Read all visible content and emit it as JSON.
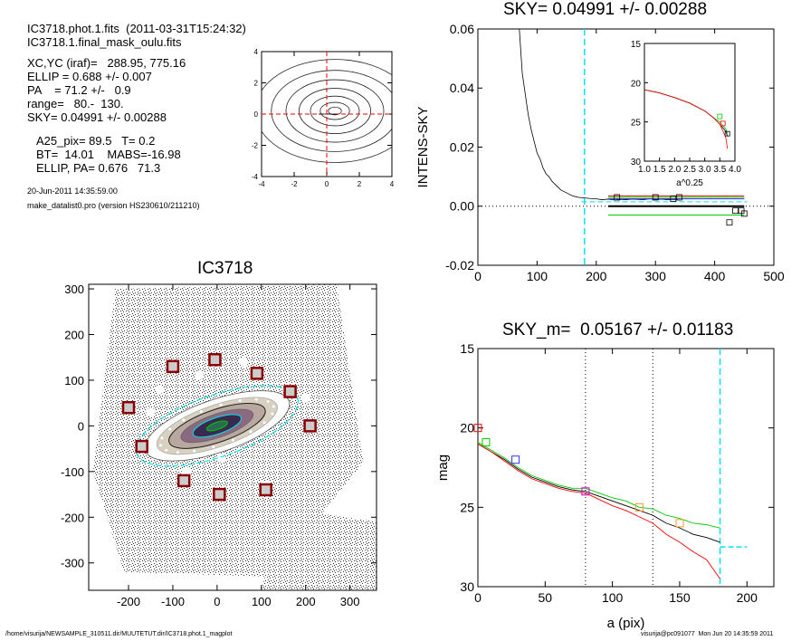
{
  "header": {
    "file_line": "IC3718.phot.1.fits  (2011-03-31T15:24:32)",
    "mask_line": "IC3718.1.final_mask_oulu.fits",
    "xcyc": "XC,YC (iraf)=   288.95, 775.16",
    "ellip": "ELLIP = 0.688 +/- 0.007",
    "pa": "PA    = 71.2 +/-   0.9",
    "range": "range=   80.-  130.",
    "sky": "SKY= 0.04991 +/- 0.00288",
    "a25": "A25_pix= 89.5   T= 0.2",
    "bt": "BT=  14.01    MABS=-16.98",
    "ellip_pa": "ELLIP, PA= 0.676   71.3",
    "date": "20-Jun-2011 14:35:59.00",
    "program": "make_datalist0.pro (version HS230610/211210)"
  },
  "footer": {
    "path": "/home/visurija/NEWSAMPLE_310511.dir/MUUTETUT.dir/IC3718.phot.1_magplot",
    "user": "visurija@pc091077  Mon Jun 20 14:35:59 2011"
  },
  "colors": {
    "cyan": "#00e5ee",
    "red": "#ff0000",
    "green": "#00cc00",
    "blue": "#3030ff",
    "magenta": "#cc00cc",
    "orange": "#ff9933",
    "dkred": "#8b0000"
  },
  "chart_data": [
    {
      "id": "contour",
      "type": "line",
      "xticks": [
        "-4",
        "-2",
        "0",
        "2",
        "4"
      ],
      "yticks": [
        "4",
        "2",
        "0",
        "-2",
        "-4"
      ],
      "xlim": [
        -4,
        4
      ],
      "ylim": [
        -4,
        4
      ]
    },
    {
      "id": "sky",
      "type": "line",
      "title": "SKY= 0.04991 +/- 0.00288",
      "ylabel": "INTENS-SKY",
      "xlim": [
        0,
        500
      ],
      "ylim": [
        -0.02,
        0.06
      ],
      "xticks": [
        "0",
        "100",
        "200",
        "300",
        "400",
        "500"
      ],
      "yticks": [
        "0.06",
        "0.04",
        "0.02",
        "0.00",
        "-0.02"
      ],
      "profile_x": [
        70,
        75,
        80,
        85,
        90,
        95,
        100,
        105,
        110,
        115,
        120,
        125,
        130,
        135,
        140,
        145,
        150,
        160,
        170,
        180,
        190,
        200,
        210,
        220,
        230,
        240,
        250,
        260,
        270,
        280,
        290,
        300,
        310,
        320,
        330,
        340
      ],
      "profile_y": [
        0.06,
        0.045,
        0.038,
        0.031,
        0.026,
        0.022,
        0.018,
        0.016,
        0.013,
        0.011,
        0.01,
        0.0085,
        0.0075,
        0.0065,
        0.0055,
        0.005,
        0.0045,
        0.0035,
        0.003,
        0.0028,
        0.0026,
        0.0025,
        0.0022,
        0.0024,
        0.0021,
        0.0023,
        0.0022,
        0.0024,
        0.0023,
        0.0022,
        0.0025,
        0.0023,
        0.0024,
        0.0022,
        0.0023,
        0.0021
      ],
      "vline_x": 180,
      "hlines": [
        {
          "color": "cyan",
          "x": [
            175,
            455
          ],
          "y": 0.0015
        },
        {
          "color": "red",
          "x": [
            220,
            450
          ],
          "y": 0.0035
        },
        {
          "color": "green",
          "x": [
            220,
            450
          ],
          "y": 0.003
        },
        {
          "color": "blue",
          "x": [
            220,
            450
          ],
          "y": 0.0025
        },
        {
          "color": "black",
          "x": [
            220,
            450
          ],
          "y": 0.0,
          "bold": true
        },
        {
          "color": "green",
          "x": [
            220,
            450
          ],
          "y": -0.003
        }
      ],
      "squares": [
        [
          235,
          0.003
        ],
        [
          300,
          0.003
        ],
        [
          330,
          0.0025
        ],
        [
          340,
          0.003
        ],
        [
          425,
          -0.0055
        ],
        [
          435,
          -0.0015
        ],
        [
          445,
          -0.0015
        ],
        [
          450,
          -0.0025
        ]
      ],
      "inset": {
        "xlabel": "a^0.25",
        "xticks": [
          "1.0",
          "1.5",
          "2.0",
          "2.5",
          "3.0",
          "3.5",
          "4.0"
        ],
        "yticks": [
          "15",
          "20",
          "25",
          "30"
        ],
        "xlim": [
          1.0,
          4.0
        ],
        "ylim": [
          15,
          30
        ]
      }
    },
    {
      "id": "image",
      "type": "scatter",
      "title": "IC3718",
      "xticks": [
        "-200",
        "-100",
        "0",
        "100",
        "200",
        "300"
      ],
      "yticks": [
        "300",
        "200",
        "100",
        "0",
        "-100",
        "-200",
        "-300"
      ],
      "xlim": [
        -290,
        360
      ],
      "ylim": [
        -360,
        310
      ]
    },
    {
      "id": "mag",
      "type": "line",
      "title": "SKY_m=  0.05167 +/- 0.01183",
      "xlabel": "a (pix)",
      "ylabel": "mag",
      "xlim": [
        0,
        220
      ],
      "ylim": [
        15,
        30
      ],
      "xticks": [
        "0",
        "50",
        "100",
        "150",
        "200"
      ],
      "yticks": [
        "15",
        "20",
        "25",
        "30"
      ],
      "dotted_x": [
        80,
        130
      ],
      "vline_x": 180,
      "sky_level": 27.5,
      "black_x": [
        0,
        10,
        20,
        30,
        40,
        50,
        60,
        70,
        80,
        90,
        100,
        110,
        120,
        130,
        140,
        150,
        160,
        170,
        180
      ],
      "black_y": [
        21.0,
        21.5,
        22.0,
        22.6,
        23.1,
        23.4,
        23.7,
        23.9,
        24.0,
        24.3,
        24.6,
        24.9,
        25.2,
        25.5,
        26.0,
        26.3,
        26.7,
        26.9,
        27.2
      ],
      "green_y": [
        20.9,
        21.4,
        21.9,
        22.5,
        23.0,
        23.3,
        23.6,
        23.8,
        23.8,
        24.1,
        24.4,
        24.6,
        25.0,
        25.1,
        25.5,
        25.7,
        26.0,
        26.1,
        26.3
      ],
      "red_y": [
        21.0,
        21.5,
        22.1,
        22.7,
        23.2,
        23.5,
        23.8,
        24.0,
        24.1,
        24.5,
        24.9,
        25.2,
        25.6,
        26.0,
        26.7,
        27.2,
        27.8,
        28.3,
        29.5
      ],
      "squares": [
        {
          "x": 0,
          "y": 20.0,
          "color": "red"
        },
        {
          "x": 6,
          "y": 20.9,
          "color": "green"
        },
        {
          "x": 28,
          "y": 22.0,
          "color": "blue"
        },
        {
          "x": 80,
          "y": 24.0,
          "color": "magenta"
        },
        {
          "x": 120,
          "y": 25.0,
          "color": "orange"
        },
        {
          "x": 150,
          "y": 26.0,
          "color": "orange"
        }
      ]
    }
  ]
}
